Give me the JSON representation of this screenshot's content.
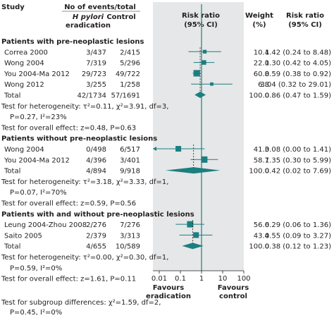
{
  "header": {
    "study": "Study",
    "events_group": "No of events/total",
    "col_treat_1": "H pylori",
    "col_treat_2": "eradication",
    "col_control": "Control",
    "rr_ci_1": "Risk ratio",
    "rr_ci_2": "(95% CI)",
    "weight_1": "Weight",
    "weight_2": "(%)",
    "rr_text_1": "Risk ratio",
    "rr_text_2": "(95% CI)"
  },
  "axis": {
    "ticks": [
      "0.01",
      "0.1",
      "1",
      "10",
      "100"
    ],
    "favours_left_1": "Favours",
    "favours_left_2": "eradication",
    "favours_right_1": "Favours",
    "favours_right_2": "control"
  },
  "colors": {
    "panel": "#e6e7e8",
    "accent": "#1b7f80",
    "text": "#231f20",
    "pooled_line": "#231f20"
  },
  "chart_data": {
    "type": "forest",
    "scale": "log",
    "xlim": [
      0.01,
      100
    ],
    "null_value": 1,
    "groups": [
      {
        "label": "Patients with pre-neoplastic lesions",
        "studies": [
          {
            "name": "Correa 2000",
            "treat": "3/437",
            "control": "2/415",
            "weight": "10.4",
            "rr_text": "1.42 (0.24 to 8.48)",
            "rr": 1.42,
            "lo": 0.24,
            "hi": 8.48,
            "w": 10.4
          },
          {
            "name": "Wong 2004",
            "treat": "7/319",
            "control": "5/296",
            "weight": "22.0",
            "rr_text": "1.30 (0.42 to 4.05)",
            "rr": 1.3,
            "lo": 0.42,
            "hi": 4.05,
            "w": 22.0
          },
          {
            "name": "You 2004-Ma 2012",
            "treat": "29/723",
            "control": "49/722",
            "weight": "60.8",
            "rr_text": "0.59 (0.38 to 0.92)",
            "rr": 0.59,
            "lo": 0.38,
            "hi": 0.92,
            "w": 60.8
          },
          {
            "name": "Wong 2012",
            "treat": "3/255",
            "control": "1/258",
            "weight": "6.8",
            "rr_text": "3.04 (0.32 to 29.01)",
            "rr": 3.04,
            "lo": 0.32,
            "hi": 29.01,
            "w": 6.8
          }
        ],
        "total": {
          "name": "Total",
          "treat": "42/1734",
          "control": "57/1691",
          "weight": "100.0",
          "rr_text": "0.86 (0.47 to 1.59)",
          "rr": 0.86,
          "lo": 0.47,
          "hi": 1.59
        },
        "notes": [
          "Test for heterogeneity: τ²=0.11, χ²=3.91, df=3,",
          "P=0.27, I²=23%",
          "Test for overall effect: z=0.48, P=0.63"
        ]
      },
      {
        "label": "Patients without pre-neoplastic lesions",
        "studies": [
          {
            "name": "Wong 2004",
            "treat": "0/498",
            "control": "6/517",
            "weight": "41.3",
            "rr_text": "0.08 (0.00 to 1.41)",
            "rr": 0.08,
            "lo": 0.0,
            "hi": 1.41,
            "w": 41.3
          },
          {
            "name": "You 2004-Ma 2012",
            "treat": "4/396",
            "control": "3/401",
            "weight": "58.7",
            "rr_text": "1.35 (0.30 to 5.99)",
            "rr": 1.35,
            "lo": 0.3,
            "hi": 5.99,
            "w": 58.7
          }
        ],
        "total": {
          "name": "Total",
          "treat": "4/894",
          "control": "9/918",
          "weight": "100.0",
          "rr_text": "0.42 (0.02 to 7.69)",
          "rr": 0.42,
          "lo": 0.02,
          "hi": 7.69
        },
        "notes": [
          "Test for heterogeneity: τ²=3.18, χ²=3.33, df=1,",
          "P=0.07, I²=70%",
          "Test for overall effect: z=0.59, P=0.56"
        ]
      },
      {
        "label": "Patients with and without pre-neoplastic lesions",
        "studies": [
          {
            "name": "Leung 2004-Zhou 2008",
            "treat": "2/276",
            "control": "7/276",
            "weight": "56.6",
            "rr_text": "0.29 (0.06 to 1.36)",
            "rr": 0.29,
            "lo": 0.06,
            "hi": 1.36,
            "w": 56.6
          },
          {
            "name": "Saito 2005",
            "treat": "2/379",
            "control": "3/313",
            "weight": "43.4",
            "rr_text": "0.55 (0.09 to 3.27)",
            "rr": 0.55,
            "lo": 0.09,
            "hi": 3.27,
            "w": 43.4
          }
        ],
        "total": {
          "name": "Total",
          "treat": "4/655",
          "control": "10/589",
          "weight": "100.0",
          "rr_text": "0.38 (0.12 to 1.23)",
          "rr": 0.38,
          "lo": 0.12,
          "hi": 1.23
        },
        "notes": [
          "Test for heterogeneity: τ²=0.00, χ²=0.30, df=1,",
          "P=0.59, I²=0%",
          "Test for overall effect: z=1.61, P=0.11"
        ]
      }
    ],
    "footer_notes": [
      "Test for subgroup differences: χ²=1.59, df=2,",
      "P=0.45, I²=0%"
    ]
  }
}
